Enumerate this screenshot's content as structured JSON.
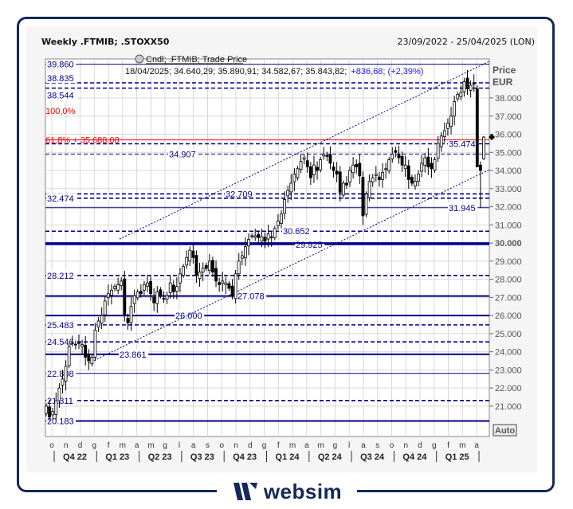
{
  "header": {
    "title": "Weekly .FTMIB; .STOXX50",
    "date_range": "23/09/2022 - 25/04/2025 (LON)"
  },
  "legend": {
    "series": "Cndl; .FTMIB; Trade Price",
    "info": "18/04/2025; 34.640,29; 35.890,91; 34.582,67; 35.843,82;",
    "change": "+836,68; (+2,39%)"
  },
  "axis": {
    "title": "Price",
    "unit": "EUR",
    "auto_label": "Auto"
  },
  "logo": {
    "text": "websim"
  },
  "colors": {
    "line": "#00008b",
    "fib": "#ff0000",
    "candle": "#000000",
    "grid": "#d8d8d8"
  },
  "chart_data": {
    "type": "candlestick",
    "title": "Weekly .FTMIB; .STOXX50",
    "ylim": [
      19700,
      40300
    ],
    "yticks": [
      21000,
      22000,
      23000,
      24000,
      25000,
      26000,
      27000,
      28000,
      29000,
      30000,
      31000,
      32000,
      33000,
      34000,
      35000,
      36000,
      37000,
      38000
    ],
    "ytick_labels": [
      "21.000",
      "22.000",
      "23.000",
      "24.000",
      "25.000",
      "26.000",
      "27.000",
      "28.000",
      "29.000",
      "30.000",
      "31.000",
      "32.000",
      "33.000",
      "34.000",
      "35.000",
      "36.000",
      "37.000",
      "38.000"
    ],
    "grid": true,
    "month_labels": [
      "o",
      "n",
      "d",
      "g",
      "f",
      "m",
      "a",
      "m",
      "g",
      "l",
      "a",
      "s",
      "o",
      "n",
      "d",
      "g",
      "f",
      "m",
      "a",
      "m",
      "g",
      "l",
      "a",
      "s",
      "o",
      "n",
      "d",
      "g",
      "f",
      "m",
      "a"
    ],
    "quarter_labels": [
      "Q4 22",
      "Q1 23",
      "Q2 23",
      "Q3 23",
      "Q4 23",
      "Q1 24",
      "Q2 24",
      "Q3 24",
      "Q4 24",
      "Q1 25"
    ],
    "weekly_close": [
      21000,
      20400,
      20700,
      21300,
      22000,
      22500,
      23200,
      24300,
      24500,
      24400,
      24500,
      24400,
      23700,
      23500,
      23700,
      25200,
      25700,
      26000,
      26800,
      27200,
      27400,
      27600,
      27700,
      27900,
      26000,
      25600,
      26500,
      27100,
      27300,
      27200,
      27700,
      27800,
      27200,
      26700,
      27300,
      27100,
      26900,
      27100,
      27800,
      27300,
      27600,
      28300,
      28700,
      29200,
      29600,
      29200,
      28200,
      28400,
      28600,
      28600,
      29000,
      28400,
      27900,
      27700,
      27900,
      27800,
      27500,
      27100,
      28300,
      29000,
      29300,
      29800,
      30200,
      30400,
      30400,
      30300,
      30350,
      30100,
      30500,
      30300,
      30800,
      31200,
      31600,
      32400,
      32900,
      33300,
      33800,
      34100,
      34500,
      34700,
      34200,
      33600,
      34300,
      34000,
      34600,
      34900,
      34800,
      34400,
      34000,
      33800,
      32800,
      33300,
      33200,
      34000,
      34300,
      34200,
      33700,
      31500,
      32700,
      33400,
      33600,
      33800,
      33500,
      33900,
      34100,
      34600,
      34900,
      35000,
      34700,
      34300,
      34300,
      33500,
      33300,
      33400,
      33800,
      34400,
      34700,
      34200,
      34100,
      34600,
      35500,
      35900,
      36200,
      36600,
      37000,
      37800,
      38200,
      38300,
      38900,
      38500,
      38700,
      38800,
      34200,
      34000,
      35843.82
    ],
    "last_candle": {
      "date": "18/04/2025",
      "open": 34640.29,
      "high": 35890.91,
      "low": 34582.67,
      "close": 35843.82
    },
    "levels": [
      {
        "value": 39860,
        "label": "39.860",
        "style": "solid-thin",
        "label_pos": "left"
      },
      {
        "value": 38835,
        "label": "38.835",
        "style": "dashed",
        "label_pos": "left"
      },
      {
        "value": 38544,
        "label": "38.544",
        "style": "dashed",
        "label_pos": "left"
      },
      {
        "value": 35474,
        "label": "35.474",
        "style": "dashed",
        "label_pos": "right"
      },
      {
        "value": 34907,
        "label": "34.907",
        "style": "dashed-thin",
        "label_pos": "mid1"
      },
      {
        "value": 32709,
        "label": "32.709",
        "style": "dashed",
        "label_pos": "mid2"
      },
      {
        "value": 32474,
        "label": "32.474",
        "style": "dashed",
        "label_pos": "left"
      },
      {
        "value": 31945,
        "label": "31.945",
        "style": "solid-thin",
        "label_pos": "right"
      },
      {
        "value": 30652,
        "label": "30.652",
        "style": "dashed",
        "label_pos": "mid3"
      },
      {
        "value": 29925,
        "label": "29.925",
        "style": "solid",
        "label_pos": "mid4"
      },
      {
        "value": 30000,
        "label": "",
        "style": "solid",
        "label_pos": "none"
      },
      {
        "value": 28212,
        "label": "28.212",
        "style": "dashed",
        "label_pos": "left"
      },
      {
        "value": 27078,
        "label": "27.078",
        "style": "solid",
        "label_pos": "mid5"
      },
      {
        "value": 26000,
        "label": "26.000",
        "style": "solid",
        "label_pos": "mid6"
      },
      {
        "value": 25483,
        "label": "25.483",
        "style": "dashed",
        "label_pos": "left"
      },
      {
        "value": 24546,
        "label": "24.546",
        "style": "dashed",
        "label_pos": "left"
      },
      {
        "value": 23861,
        "label": "23.861",
        "style": "solid",
        "label_pos": "mid7"
      },
      {
        "value": 22808,
        "label": "22.808",
        "style": "solid-thin",
        "label_pos": "left"
      },
      {
        "value": 21311,
        "label": "21.311",
        "style": "dashed",
        "label_pos": "left"
      },
      {
        "value": 20183,
        "label": "20.183",
        "style": "solid",
        "label_pos": "left"
      }
    ],
    "fibonacci": [
      {
        "label": "100,0%",
        "value": 37300
      },
      {
        "label": "61,8% + 35.688,08",
        "value": 35688.08
      }
    ],
    "last_price_marker": 35843.82
  }
}
